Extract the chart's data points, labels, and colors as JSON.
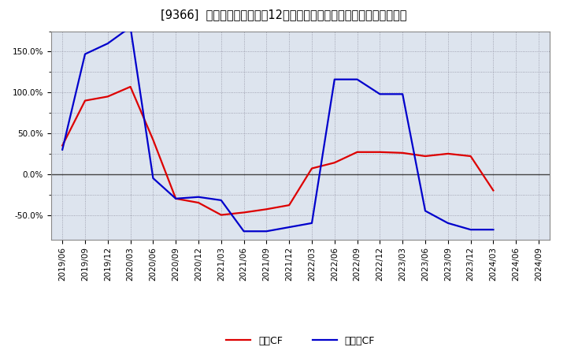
{
  "title": "[9366]  キャッシュフローの12か月移動合計の対前年同期増減率の推移",
  "background_color": "#ffffff",
  "plot_bg_color": "#dde4ee",
  "ylim": [
    -0.8,
    1.0
  ],
  "yticks": [
    -0.5,
    -0.25,
    0.0,
    0.25,
    0.5,
    0.75,
    1.0,
    1.25,
    1.5,
    1.75
  ],
  "ytick_labels": [
    "-50.0%",
    "",
    "0.0%",
    "",
    "50.0%",
    "",
    "100.0%",
    "",
    "150.0%",
    ""
  ],
  "shown_yticks": [
    -0.5,
    0.0,
    0.5,
    1.0,
    1.5
  ],
  "shown_ytick_labels": [
    "-50.0%",
    "0.0%",
    "50.0%",
    "100.0%",
    "150.0%"
  ],
  "x_labels": [
    "2019/06",
    "2019/09",
    "2019/12",
    "2020/03",
    "2020/06",
    "2020/09",
    "2020/12",
    "2021/03",
    "2021/06",
    "2021/09",
    "2021/12",
    "2022/03",
    "2022/06",
    "2022/09",
    "2022/12",
    "2023/03",
    "2023/06",
    "2023/09",
    "2023/12",
    "2024/03",
    "2024/06",
    "2024/09"
  ],
  "operating_cf": [
    0.35,
    0.9,
    0.95,
    1.07,
    0.42,
    -0.3,
    -0.35,
    -0.5,
    -0.47,
    -0.43,
    -0.38,
    0.07,
    0.14,
    0.27,
    0.27,
    0.26,
    0.22,
    0.25,
    0.22,
    -0.2,
    null,
    null
  ],
  "free_cf": [
    0.3,
    1.47,
    1.6,
    1.8,
    -0.05,
    -0.3,
    -0.28,
    -0.32,
    -0.7,
    -0.7,
    -0.65,
    -0.6,
    1.16,
    1.16,
    0.98,
    0.98,
    -0.45,
    -0.6,
    -0.68,
    -0.68,
    null,
    null
  ],
  "operating_color": "#dd0000",
  "free_color": "#0000cc",
  "line_width": 1.6,
  "title_fontsize": 10.5,
  "tick_fontsize": 7.5,
  "legend_fontsize": 9,
  "legend_label_op": "営業CF",
  "legend_label_fr": "フリーCF"
}
